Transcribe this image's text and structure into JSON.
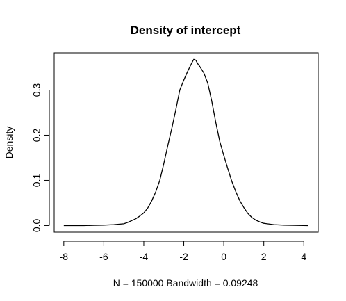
{
  "chart_data": {
    "type": "line",
    "title": "Density of intercept",
    "xlabel": "N = 150000   Bandwidth = 0.09248",
    "ylabel": "Density",
    "xlim": [
      -8.48,
      4.72
    ],
    "ylim": [
      -0.0147,
      0.3823
    ],
    "grid": false,
    "legend": "none",
    "x_ticks": [
      -8,
      -6,
      -4,
      -2,
      0,
      2,
      4
    ],
    "x_tick_labels": [
      "-8",
      "-6",
      "-4",
      "-2",
      "0",
      "2",
      "4"
    ],
    "y_ticks": [
      0.0,
      0.1,
      0.2,
      0.3
    ],
    "y_tick_labels": [
      "0.0",
      "0.1",
      "0.2",
      "0.3"
    ],
    "series": [
      {
        "color": "#000000",
        "x": [
          -8.0,
          -7.0,
          -6.5,
          -6.0,
          -5.5,
          -5.0,
          -4.8,
          -4.6,
          -4.4,
          -4.2,
          -4.0,
          -3.8,
          -3.6,
          -3.4,
          -3.2,
          -3.0,
          -2.8,
          -2.6,
          -2.4,
          -2.2,
          -2.0,
          -1.8,
          -1.6,
          -1.5,
          -1.4,
          -1.3,
          -1.2,
          -1.0,
          -0.8,
          -0.6,
          -0.4,
          -0.2,
          0.0,
          0.2,
          0.4,
          0.6,
          0.8,
          1.0,
          1.2,
          1.4,
          1.6,
          1.8,
          2.0,
          2.5,
          3.0,
          3.5,
          4.2
        ],
        "y": [
          0.0,
          0.0,
          0.0005,
          0.001,
          0.002,
          0.004,
          0.007,
          0.011,
          0.015,
          0.021,
          0.028,
          0.039,
          0.055,
          0.075,
          0.1,
          0.137,
          0.177,
          0.215,
          0.256,
          0.3,
          0.322,
          0.342,
          0.36,
          0.368,
          0.366,
          0.358,
          0.352,
          0.338,
          0.315,
          0.275,
          0.228,
          0.186,
          0.155,
          0.126,
          0.098,
          0.075,
          0.055,
          0.04,
          0.027,
          0.018,
          0.012,
          0.008,
          0.005,
          0.002,
          0.001,
          0.0005,
          0.0
        ]
      }
    ]
  }
}
